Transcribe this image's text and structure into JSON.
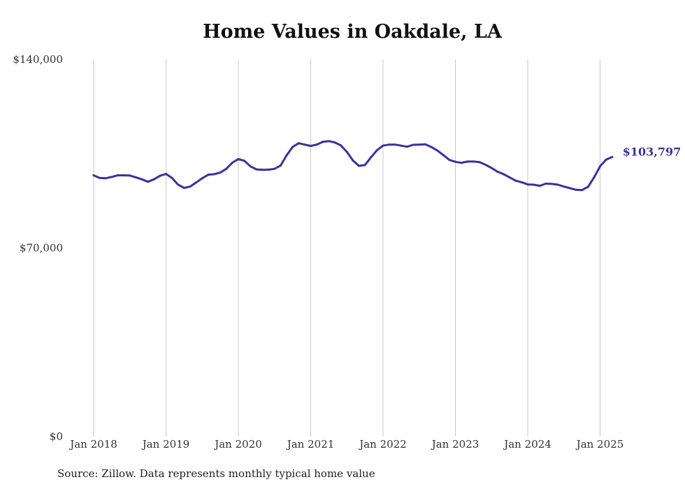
{
  "chart_data": {
    "type": "line",
    "title": "Home Values in Oakdale, LA",
    "xlabel": "",
    "ylabel": "",
    "ylim": [
      0,
      140000
    ],
    "y_ticks": [
      "$0",
      "$70,000",
      "$140,000"
    ],
    "x_ticks": [
      "Jan 2018",
      "Jan 2019",
      "Jan 2020",
      "Jan 2021",
      "Jan 2022",
      "Jan 2023",
      "Jan 2024",
      "Jan 2025"
    ],
    "grid": "vertical",
    "line_color": "#3a3399",
    "end_label": "$103,797",
    "series": [
      {
        "x": [
          "2018-01",
          "2018-02",
          "2018-03",
          "2018-04",
          "2018-05",
          "2018-06",
          "2018-07",
          "2018-08",
          "2018-09",
          "2018-10",
          "2018-11",
          "2018-12",
          "2019-01",
          "2019-02",
          "2019-03",
          "2019-04",
          "2019-05",
          "2019-06",
          "2019-07",
          "2019-08",
          "2019-09",
          "2019-10",
          "2019-11",
          "2019-12",
          "2020-01",
          "2020-02",
          "2020-03",
          "2020-04",
          "2020-05",
          "2020-06",
          "2020-07",
          "2020-08",
          "2020-09",
          "2020-10",
          "2020-11",
          "2020-12",
          "2021-01",
          "2021-02",
          "2021-03",
          "2021-04",
          "2021-05",
          "2021-06",
          "2021-07",
          "2021-08",
          "2021-09",
          "2021-10",
          "2021-11",
          "2021-12",
          "2022-01",
          "2022-02",
          "2022-03",
          "2022-04",
          "2022-05",
          "2022-06",
          "2022-07",
          "2022-08",
          "2022-09",
          "2022-10",
          "2022-11",
          "2022-12",
          "2023-01",
          "2023-02",
          "2023-03",
          "2023-04",
          "2023-05",
          "2023-06",
          "2023-07",
          "2023-08",
          "2023-09",
          "2023-10",
          "2023-11",
          "2023-12",
          "2024-01",
          "2024-02",
          "2024-03",
          "2024-04",
          "2024-05",
          "2024-06",
          "2024-07",
          "2024-08",
          "2024-09",
          "2024-10",
          "2024-11",
          "2024-12",
          "2025-01",
          "2025-02",
          "2025-03"
        ],
        "values": [
          97000,
          96000,
          95900,
          96400,
          97000,
          97000,
          96900,
          96200,
          95500,
          94600,
          95500,
          96800,
          97500,
          96000,
          93500,
          92300,
          92800,
          94300,
          95900,
          97200,
          97400,
          98000,
          99400,
          101700,
          103000,
          102400,
          100300,
          99200,
          99000,
          99100,
          99400,
          100600,
          104400,
          107500,
          108900,
          108400,
          107900,
          108400,
          109400,
          109700,
          109200,
          108100,
          105700,
          102500,
          100500,
          100800,
          103700,
          106300,
          108000,
          108400,
          108400,
          108000,
          107600,
          108300,
          108400,
          108500,
          107500,
          106200,
          104500,
          102700,
          102000,
          101600,
          102100,
          102100,
          101900,
          100900,
          99700,
          98300,
          97400,
          96200,
          95000,
          94400,
          93600,
          93500,
          93100,
          93900,
          93800,
          93500,
          92800,
          92200,
          91600,
          91500,
          92700,
          96200,
          100300,
          102800,
          103797
        ]
      }
    ]
  },
  "source_note": "Source: Zillow. Data represents monthly typical home value"
}
